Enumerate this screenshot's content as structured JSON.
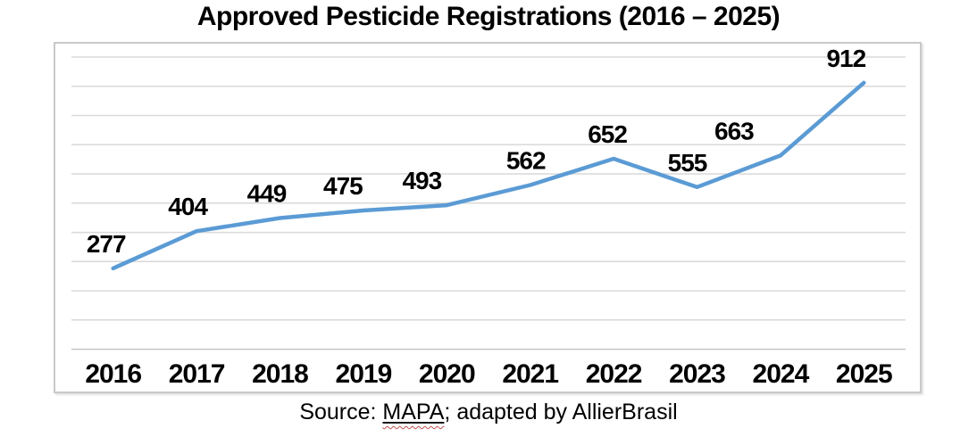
{
  "title": "Approved Pesticide Registrations (2016 – 2025)",
  "source_caption": {
    "prefix": "Source: ",
    "agency": "MAPA",
    "suffix": "; adapted by AllierBrasil"
  },
  "colors": {
    "line": "#5B9BD5",
    "gridline": "#D9D9D9",
    "axis_line": "#C6C6C6",
    "chart_border": "#C9C9C9",
    "text": "#000000",
    "spellcheck_underline": "#C0504D",
    "background": "#FFFFFF"
  },
  "chart_data": {
    "type": "line",
    "title": "Approved Pesticide Registrations (2016 – 2025)",
    "categories": [
      "2016",
      "2017",
      "2018",
      "2019",
      "2020",
      "2021",
      "2022",
      "2023",
      "2024",
      "2025"
    ],
    "values": [
      277,
      404,
      449,
      475,
      493,
      562,
      652,
      555,
      663,
      912
    ],
    "xlabel": "",
    "ylabel": "",
    "ylim": [
      0,
      1000
    ],
    "gridline_step": 100,
    "grid": "horizontal",
    "legend": "none",
    "data_labels": "bold values above each point",
    "y_axis_tick_labels": "none visible"
  }
}
